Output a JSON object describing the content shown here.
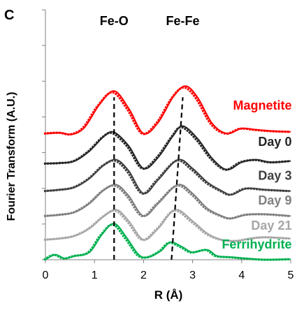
{
  "chart_data": {
    "type": "line",
    "panel_label": "C",
    "xlabel": "R (Å)",
    "ylabel": "Fourier Transform (A.U.)",
    "xlim": [
      0,
      5
    ],
    "xticks": [
      "0",
      "1",
      "2",
      "3",
      "4",
      "5"
    ],
    "ylim": [
      0,
      10
    ],
    "grid": false,
    "annotations": [
      {
        "text": "Fe-O",
        "line": [
          [
            1.4,
            0.0
          ],
          [
            1.4,
            6.5
          ]
        ]
      },
      {
        "text": "Fe-Fe",
        "line": [
          [
            2.57,
            0.0
          ],
          [
            2.8,
            6.5
          ]
        ]
      }
    ],
    "series": [
      {
        "name": "Magnetite",
        "color": "#ff0000",
        "offset": 5.0,
        "label_x": 4.85,
        "label_y": 6.0,
        "points": [
          [
            0,
            0.05
          ],
          [
            0.3,
            0.08
          ],
          [
            0.55,
            0.02
          ],
          [
            0.8,
            0.3
          ],
          [
            1.1,
            1.2
          ],
          [
            1.4,
            1.75
          ],
          [
            1.7,
            1.05
          ],
          [
            2.0,
            0.05
          ],
          [
            2.3,
            0.5
          ],
          [
            2.6,
            1.5
          ],
          [
            2.85,
            1.95
          ],
          [
            3.1,
            1.5
          ],
          [
            3.4,
            0.45
          ],
          [
            3.7,
            0.05
          ],
          [
            4.0,
            0.25
          ],
          [
            4.3,
            0.2
          ],
          [
            4.6,
            0.15
          ],
          [
            5.0,
            0.12
          ]
        ]
      },
      {
        "name": "Day 0",
        "color": "#262626",
        "offset": 3.75,
        "label_x": 4.85,
        "label_y": 4.55,
        "points": [
          [
            0,
            0.1
          ],
          [
            0.3,
            0.12
          ],
          [
            0.6,
            0.2
          ],
          [
            0.9,
            0.6
          ],
          [
            1.2,
            1.2
          ],
          [
            1.4,
            1.35
          ],
          [
            1.7,
            0.8
          ],
          [
            2.0,
            -0.1
          ],
          [
            2.3,
            0.35
          ],
          [
            2.6,
            1.2
          ],
          [
            2.8,
            1.6
          ],
          [
            3.1,
            1.1
          ],
          [
            3.4,
            0.3
          ],
          [
            3.7,
            -0.15
          ],
          [
            4.0,
            0.15
          ],
          [
            4.3,
            0.25
          ],
          [
            4.6,
            0.15
          ],
          [
            5.0,
            0.2
          ]
        ]
      },
      {
        "name": "Day 3",
        "color": "#404040",
        "offset": 2.65,
        "label_x": 4.85,
        "label_y": 3.2,
        "points": [
          [
            0,
            0.1
          ],
          [
            0.3,
            0.15
          ],
          [
            0.6,
            0.25
          ],
          [
            0.9,
            0.6
          ],
          [
            1.2,
            1.15
          ],
          [
            1.45,
            1.35
          ],
          [
            1.7,
            0.9
          ],
          [
            2.0,
            0.0
          ],
          [
            2.3,
            0.55
          ],
          [
            2.7,
            1.35
          ],
          [
            3.0,
            1.0
          ],
          [
            3.3,
            0.45
          ],
          [
            3.6,
            0.1
          ],
          [
            3.8,
            -0.05
          ],
          [
            4.1,
            0.2
          ],
          [
            4.5,
            0.15
          ],
          [
            5.0,
            0.1
          ]
        ]
      },
      {
        "name": "Day 9",
        "color": "#7f7f7f",
        "offset": 1.7,
        "label_x": 4.85,
        "label_y": 2.2,
        "points": [
          [
            0,
            0.05
          ],
          [
            0.3,
            0.1
          ],
          [
            0.6,
            0.2
          ],
          [
            0.9,
            0.55
          ],
          [
            1.2,
            1.1
          ],
          [
            1.45,
            1.3
          ],
          [
            1.7,
            0.85
          ],
          [
            2.0,
            0.05
          ],
          [
            2.3,
            0.55
          ],
          [
            2.7,
            1.3
          ],
          [
            3.0,
            0.95
          ],
          [
            3.3,
            0.35
          ],
          [
            3.6,
            0.05
          ],
          [
            3.8,
            -0.05
          ],
          [
            4.1,
            0.1
          ],
          [
            4.5,
            0.12
          ],
          [
            5.0,
            0.05
          ]
        ]
      },
      {
        "name": "Day 21",
        "color": "#a6a6a6",
        "offset": 0.75,
        "label_x": 4.85,
        "label_y": 1.2,
        "points": [
          [
            0,
            0.05
          ],
          [
            0.3,
            0.1
          ],
          [
            0.6,
            0.2
          ],
          [
            0.9,
            0.5
          ],
          [
            1.2,
            1.0
          ],
          [
            1.45,
            1.25
          ],
          [
            1.7,
            0.8
          ],
          [
            2.0,
            0.05
          ],
          [
            2.3,
            0.5
          ],
          [
            2.65,
            1.25
          ],
          [
            3.0,
            0.8
          ],
          [
            3.3,
            0.3
          ],
          [
            3.6,
            0.05
          ],
          [
            3.9,
            0.0
          ],
          [
            4.2,
            0.1
          ],
          [
            4.5,
            0.15
          ],
          [
            5.0,
            0.1
          ]
        ]
      },
      {
        "name": "Ferrihydrite",
        "color": "#00b050",
        "offset": 0.0,
        "label_x": 4.85,
        "label_y": 0.45,
        "points": [
          [
            0,
            0.0
          ],
          [
            0.2,
            0.2
          ],
          [
            0.4,
            0.05
          ],
          [
            0.6,
            0.15
          ],
          [
            0.9,
            0.3
          ],
          [
            1.15,
            1.0
          ],
          [
            1.4,
            1.45
          ],
          [
            1.65,
            0.9
          ],
          [
            1.9,
            0.2
          ],
          [
            2.1,
            0.1
          ],
          [
            2.35,
            0.35
          ],
          [
            2.55,
            0.7
          ],
          [
            2.8,
            0.5
          ],
          [
            3.0,
            0.3
          ],
          [
            3.3,
            0.4
          ],
          [
            3.5,
            0.15
          ],
          [
            3.8,
            0.1
          ],
          [
            4.1,
            0.05
          ],
          [
            4.5,
            0.0
          ],
          [
            5.0,
            0.02
          ]
        ]
      }
    ]
  }
}
